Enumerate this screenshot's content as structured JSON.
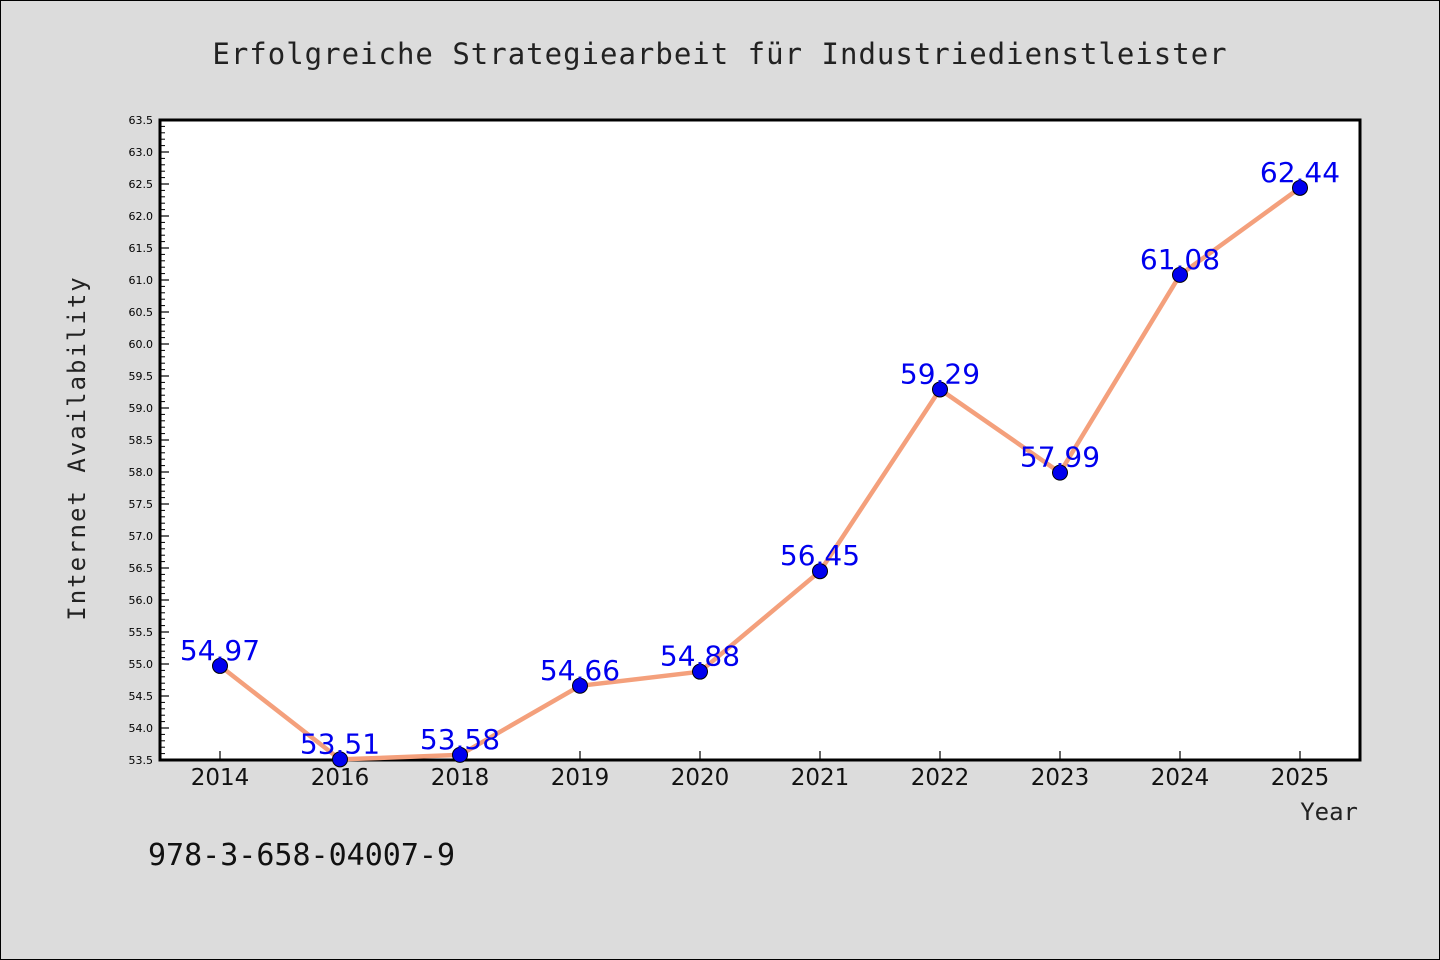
{
  "chart_data": {
    "type": "line",
    "title": "Erfolgreiche Strategiearbeit für Industriedienstleister",
    "xlabel": "Year",
    "ylabel": "Internet Availability",
    "categories": [
      "2014",
      "2016",
      "2018",
      "2019",
      "2020",
      "2021",
      "2022",
      "2023",
      "2024",
      "2025"
    ],
    "series": [
      {
        "values": [
          54.97,
          53.51,
          53.58,
          54.66,
          54.88,
          56.45,
          59.29,
          57.99,
          61.08,
          62.44
        ],
        "labels": [
          "54.97",
          "53.51",
          "53.58",
          "54.66",
          "54.88",
          "56.45",
          "59.29",
          "57.99",
          "61.08",
          "62.44"
        ]
      }
    ],
    "ylim": [
      53.5,
      63.5
    ],
    "ytick_step": 0.5,
    "yminor_per_major": 5,
    "grid": false,
    "line_color": "#f4a07c",
    "marker_color": "#0000ee",
    "label_color": "#0000ee",
    "annotation": "978-3-658-04007-9"
  }
}
